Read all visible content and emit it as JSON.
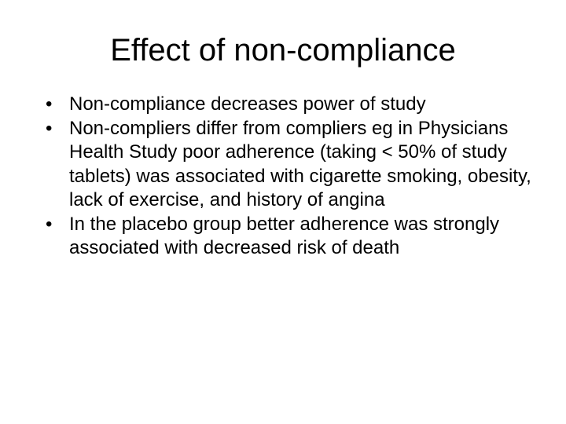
{
  "slide": {
    "title": "Effect of non-compliance",
    "bullet_symbol": "•",
    "bullets": [
      {
        "text": "Non-compliance decreases power of study"
      },
      {
        "text": "Non-compliers differ from compliers eg in Physicians Health Study poor adherence (taking < 50% of study tablets) was associated with cigarette smoking, obesity, lack of exercise, and history of angina"
      },
      {
        "text": "In the placebo group better adherence was strongly associated with decreased risk of death"
      }
    ]
  }
}
